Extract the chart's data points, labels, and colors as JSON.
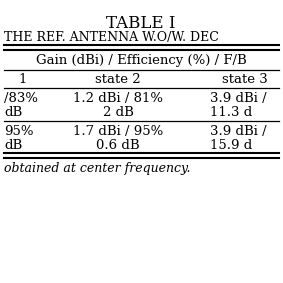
{
  "title": "TABLE I",
  "subtitle": "THE REF. ANTENNA W.O/W. DEC",
  "gain_header": "Gain (dBi) / Efficiency (%) / F/B",
  "col1": "1",
  "col2": "state 2",
  "col3": "state 3",
  "r1c1": "/83%\ndB",
  "r1c2": "1.2 dBi / 81%\n2 dB",
  "r1c3": "3.9 dBi /\n11.3 d",
  "r2c1": "95%\ndB",
  "r2c2": "1.7 dBi / 95%\n0.6 dB",
  "r2c3": "3.9 dBi /\n15.9 d",
  "footnote": "obtained at center frequency.",
  "bg_color": "#ffffff",
  "text_color": "#000000",
  "font_size": 9.5,
  "title_font_size": 12
}
